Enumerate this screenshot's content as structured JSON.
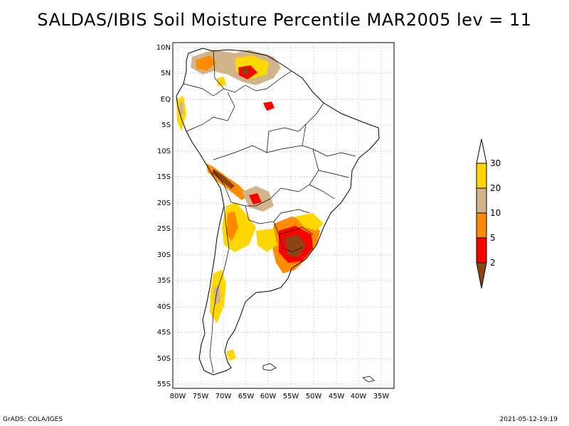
{
  "title": "SALDAS/IBIS Soil Moisture Percentile MAR2005 lev = 11",
  "lat_labels": [
    "10N",
    "5N",
    "EQ",
    "5S",
    "10S",
    "15S",
    "20S",
    "25S",
    "30S",
    "35S",
    "40S",
    "45S",
    "50S",
    "55S"
  ],
  "lon_labels": [
    "80W",
    "75W",
    "70W",
    "65W",
    "60W",
    "55W",
    "50W",
    "45W",
    "40W",
    "35W"
  ],
  "legend": {
    "labels": [
      "30",
      "20",
      "10",
      "5",
      "2"
    ],
    "colors": {
      "lt2": "#8B4513",
      "2to5": "#ff0000",
      "5to10": "#ff8c00",
      "10to20": "#d2b48c",
      "20to30": "#ffd700",
      "gt30": "#ffffff"
    }
  },
  "footer": {
    "left": "GrADS: COLA/IGES",
    "right": "2021-05-12-19:19"
  }
}
